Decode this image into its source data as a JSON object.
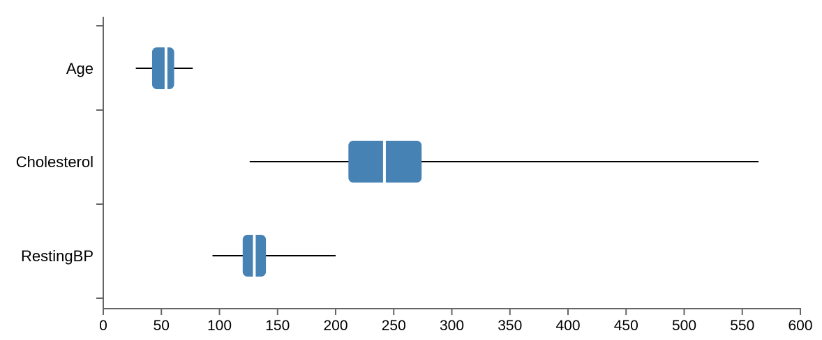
{
  "chart_data": {
    "type": "boxplot",
    "orientation": "horizontal",
    "categories": [
      "Age",
      "Cholesterol",
      "RestingBP"
    ],
    "series": [
      {
        "category": "Age",
        "min": 28,
        "q1": 42,
        "median": 54,
        "q3": 61,
        "max": 77
      },
      {
        "category": "Cholesterol",
        "min": 126,
        "q1": 211,
        "median": 242,
        "q3": 274,
        "max": 564
      },
      {
        "category": "RestingBP",
        "min": 94,
        "q1": 120,
        "median": 130,
        "q3": 140,
        "max": 200
      }
    ],
    "xlim": [
      0,
      600
    ],
    "xticks": [
      0,
      50,
      100,
      150,
      200,
      250,
      300,
      350,
      400,
      450,
      500,
      550,
      600
    ],
    "xtick_labels": [
      "0",
      "50",
      "100",
      "150",
      "200",
      "250",
      "300",
      "350",
      "400",
      "450",
      "500",
      "550",
      "600"
    ],
    "title": "",
    "xlabel": "",
    "ylabel": "",
    "box_color": "#4682b4",
    "median_color": "#ffffff",
    "whisker_color": "#000000",
    "axis_color": "#666666",
    "grid": false,
    "legend": "none"
  }
}
